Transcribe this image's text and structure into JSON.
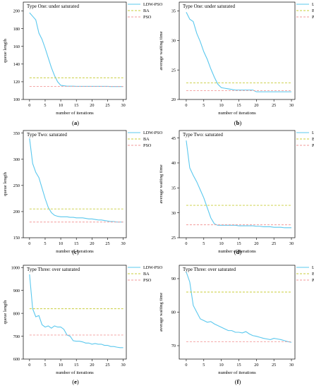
{
  "chart_data": [
    {
      "type": "line",
      "panel_label": "a",
      "title": "Type One: under saturated",
      "xlabel": "number of iterations",
      "ylabel": "queue length",
      "xlim": [
        -2,
        31
      ],
      "ylim": [
        100,
        210
      ],
      "xticks": [
        0,
        5,
        10,
        15,
        20,
        25,
        30
      ],
      "yticks": [
        100,
        120,
        140,
        160,
        180,
        200
      ],
      "legend_position": "top-right",
      "grid": false,
      "series": [
        {
          "name": "LDW-PSO",
          "color": "#5bc8ee",
          "style": "solid",
          "x": [
            0,
            1,
            2,
            3,
            4,
            5,
            6,
            7,
            8,
            9,
            10,
            11,
            12,
            13,
            14,
            15,
            16,
            17,
            18,
            19,
            20,
            21,
            22,
            23,
            24,
            25,
            26,
            27,
            28,
            29,
            30
          ],
          "y": [
            198,
            194,
            190,
            175,
            168,
            158,
            147,
            136,
            127,
            120,
            116,
            115.5,
            115,
            115,
            115,
            114.8,
            114.8,
            114.8,
            114.8,
            114.8,
            114.8,
            114.8,
            114.8,
            114.8,
            114.8,
            114.8,
            114.6,
            114.6,
            114.6,
            114.6,
            114.6
          ]
        },
        {
          "name": "BA",
          "color": "#c8cc3a",
          "style": "dashed",
          "x": [
            0,
            30
          ],
          "y": [
            124.5,
            124.5
          ]
        },
        {
          "name": "PSO",
          "color": "#f29a9a",
          "style": "dashed",
          "x": [
            0,
            30
          ],
          "y": [
            114.8,
            114.8
          ]
        }
      ]
    },
    {
      "type": "line",
      "panel_label": "b",
      "title": "Type One: under saturated",
      "xlabel": "number of iterations",
      "ylabel": "average waiting time",
      "xlim": [
        -2,
        31
      ],
      "ylim": [
        20,
        36.5
      ],
      "xticks": [
        0,
        5,
        10,
        15,
        20,
        25,
        30
      ],
      "yticks": [
        20,
        25,
        30,
        35
      ],
      "legend_position": "top-right",
      "grid": false,
      "series": [
        {
          "name": "LDW-PSO",
          "color": "#5bc8ee",
          "style": "solid",
          "x": [
            0,
            1,
            2,
            3,
            4,
            5,
            6,
            7,
            8,
            9,
            10,
            11,
            12,
            13,
            14,
            15,
            16,
            17,
            18,
            19,
            20,
            21,
            22,
            23,
            24,
            25,
            26,
            27,
            28,
            29,
            30
          ],
          "y": [
            34.8,
            33.6,
            33.2,
            31.2,
            29.8,
            28.1,
            26.8,
            25.2,
            23.8,
            22.6,
            22.0,
            21.9,
            21.8,
            21.7,
            21.6,
            21.6,
            21.6,
            21.6,
            21.6,
            21.6,
            21.3,
            21.3,
            21.3,
            21.3,
            21.3,
            21.3,
            21.3,
            21.3,
            21.3,
            21.3,
            21.3
          ]
        },
        {
          "name": "BA",
          "color": "#c8cc3a",
          "style": "dashed",
          "x": [
            0,
            30
          ],
          "y": [
            22.8,
            22.8
          ]
        },
        {
          "name": "PSO",
          "color": "#f29a9a",
          "style": "dashed",
          "x": [
            0,
            30
          ],
          "y": [
            21.5,
            21.5
          ]
        }
      ]
    },
    {
      "type": "line",
      "panel_label": "c",
      "title": "Type Two: saturated",
      "xlabel": "number of iterations",
      "ylabel": "queue length",
      "xlim": [
        -2,
        31
      ],
      "ylim": [
        150,
        355
      ],
      "xticks": [
        0,
        5,
        10,
        15,
        20,
        25,
        30
      ],
      "yticks": [
        150,
        200,
        250,
        300,
        350
      ],
      "legend_position": "top-right",
      "grid": false,
      "series": [
        {
          "name": "LDW-PSO",
          "color": "#5bc8ee",
          "style": "solid",
          "x": [
            0,
            1,
            2,
            3,
            4,
            5,
            6,
            7,
            8,
            9,
            10,
            11,
            12,
            13,
            14,
            15,
            16,
            17,
            18,
            19,
            20,
            21,
            22,
            23,
            24,
            25,
            26,
            27,
            28,
            29,
            30
          ],
          "y": [
            340,
            292,
            275,
            265,
            245,
            225,
            208,
            198,
            193,
            191,
            190,
            190,
            190,
            189,
            189,
            188,
            188,
            188,
            187,
            186,
            186,
            185,
            184,
            184,
            183,
            182,
            181,
            181,
            180,
            180,
            180
          ]
        },
        {
          "name": "BA",
          "color": "#c8cc3a",
          "style": "dashed",
          "x": [
            0,
            30
          ],
          "y": [
            205,
            205
          ]
        },
        {
          "name": "PSO",
          "color": "#f29a9a",
          "style": "dashed",
          "x": [
            0,
            30
          ],
          "y": [
            180,
            180
          ]
        }
      ]
    },
    {
      "type": "line",
      "panel_label": "d",
      "title": "Type Two: saturated",
      "xlabel": "number of iterations",
      "ylabel": "average waiting time",
      "xlim": [
        -2,
        31
      ],
      "ylim": [
        25,
        46.5
      ],
      "xticks": [
        0,
        5,
        10,
        15,
        20,
        25,
        30
      ],
      "yticks": [
        25,
        30,
        35,
        40,
        45
      ],
      "legend_position": "top-right",
      "grid": false,
      "series": [
        {
          "name": "LDW-PSO",
          "color": "#5bc8ee",
          "style": "solid",
          "x": [
            0,
            1,
            2,
            3,
            4,
            5,
            6,
            7,
            8,
            9,
            10,
            11,
            12,
            13,
            14,
            15,
            16,
            17,
            18,
            19,
            20,
            21,
            22,
            23,
            24,
            25,
            26,
            27,
            28,
            29,
            30
          ],
          "y": [
            44.5,
            39.0,
            37.5,
            36.2,
            34.6,
            33.0,
            31.0,
            29.0,
            27.8,
            27.5,
            27.5,
            27.5,
            27.5,
            27.5,
            27.5,
            27.4,
            27.4,
            27.4,
            27.4,
            27.4,
            27.3,
            27.3,
            27.2,
            27.2,
            27.2,
            27.1,
            27.1,
            27.1,
            27.0,
            27.0,
            27.0
          ]
        },
        {
          "name": "BA",
          "color": "#c8cc3a",
          "style": "dashed",
          "x": [
            0,
            30
          ],
          "y": [
            31.5,
            31.5
          ]
        },
        {
          "name": "PSO",
          "color": "#f29a9a",
          "style": "dashed",
          "x": [
            0,
            30
          ],
          "y": [
            27.6,
            27.6
          ]
        }
      ]
    },
    {
      "type": "line",
      "panel_label": "e",
      "title": "Type Three: over saturated",
      "xlabel": "number of iterations",
      "ylabel": "queue length",
      "xlim": [
        -2,
        31
      ],
      "ylim": [
        600,
        1010
      ],
      "xticks": [
        0,
        5,
        10,
        15,
        20,
        25,
        30
      ],
      "yticks": [
        600,
        700,
        800,
        900,
        1000
      ],
      "legend_position": "top-right",
      "grid": false,
      "series": [
        {
          "name": "LDW-PSO",
          "color": "#5bc8ee",
          "style": "solid",
          "x": [
            0,
            1,
            2,
            3,
            4,
            5,
            6,
            7,
            8,
            9,
            10,
            11,
            12,
            13,
            14,
            15,
            16,
            17,
            18,
            19,
            20,
            21,
            22,
            23,
            24,
            25,
            26,
            27,
            28,
            29,
            30
          ],
          "y": [
            970,
            820,
            785,
            790,
            750,
            740,
            745,
            735,
            745,
            740,
            740,
            730,
            705,
            700,
            680,
            678,
            678,
            675,
            670,
            670,
            665,
            668,
            665,
            665,
            660,
            660,
            655,
            655,
            652,
            650,
            650
          ]
        },
        {
          "name": "BA",
          "color": "#c8cc3a",
          "style": "dashed",
          "x": [
            0,
            30
          ],
          "y": [
            820,
            820
          ]
        },
        {
          "name": "PSO",
          "color": "#f29a9a",
          "style": "dashed",
          "x": [
            0,
            30
          ],
          "y": [
            705,
            705
          ]
        }
      ]
    },
    {
      "type": "line",
      "panel_label": "f",
      "title": "Type Three: over saturated",
      "xlabel": "number of iterations",
      "ylabel": "average waiting time",
      "xlim": [
        -2,
        31
      ],
      "ylim": [
        66,
        94
      ],
      "xticks": [
        0,
        5,
        10,
        15,
        20,
        25,
        30
      ],
      "yticks": [
        70,
        80,
        90
      ],
      "legend_position": "top-right",
      "grid": false,
      "series": [
        {
          "name": "LDW-PSO",
          "color": "#5bc8ee",
          "style": "solid",
          "x": [
            0,
            1,
            2,
            3,
            4,
            5,
            6,
            7,
            8,
            9,
            10,
            11,
            12,
            13,
            14,
            15,
            16,
            17,
            18,
            19,
            20,
            21,
            22,
            23,
            24,
            25,
            26,
            27,
            28,
            29,
            30
          ],
          "y": [
            92,
            89,
            82,
            80,
            78,
            77.5,
            77,
            77.2,
            76.5,
            76,
            75.5,
            75,
            74.5,
            74.5,
            74,
            74,
            73.8,
            74.2,
            73.5,
            73,
            72.8,
            72.5,
            72.2,
            72,
            71.8,
            72.2,
            72,
            71.8,
            71.5,
            71.2,
            71
          ]
        },
        {
          "name": "BA",
          "color": "#c8cc3a",
          "style": "dashed",
          "x": [
            0,
            30
          ],
          "y": [
            86,
            86
          ]
        },
        {
          "name": "PSO",
          "color": "#f29a9a",
          "style": "dashed",
          "x": [
            0,
            30
          ],
          "y": [
            71.2,
            71.2
          ]
        }
      ]
    }
  ]
}
